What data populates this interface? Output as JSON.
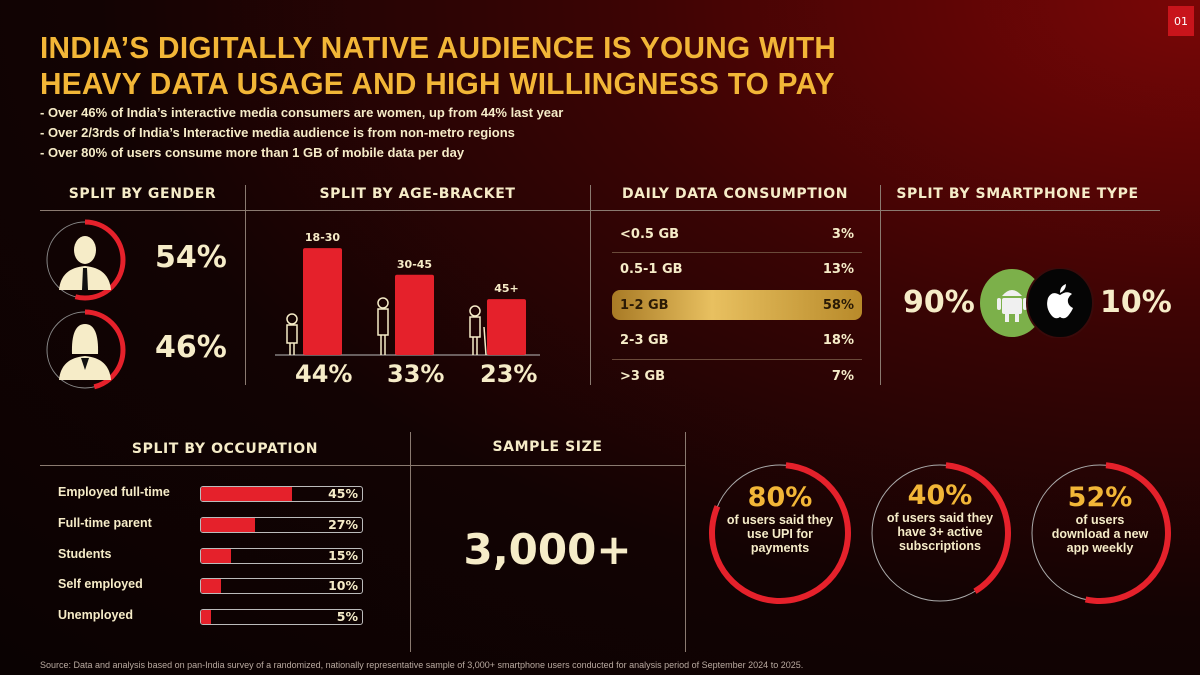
{
  "page_number": "01",
  "title": {
    "line1": "INDIA’S DIGITALLY NATIVE AUDIENCE IS YOUNG WITH",
    "line2": "HEAVY DATA USAGE AND HIGH WILLINGNESS TO PAY"
  },
  "bullets": [
    "- Over 46% of India’s interactive media consumers are women, up from 44% last year",
    "- Over 2/3rds of India’s Interactive media audience is from non-metro regions",
    "- Over 80% of users consume more than 1 GB of mobile data per day"
  ],
  "colors": {
    "accent_red": "#e5212b",
    "gold": "#f2b637",
    "cream": "#f6ecc8",
    "android_green": "#7cb04a"
  },
  "chart_data": [
    {
      "type": "pie",
      "title": "SPLIT BY GENDER",
      "categories": [
        "Male",
        "Female"
      ],
      "values": [
        54,
        46
      ],
      "labels": [
        "54%",
        "46%"
      ],
      "icons": [
        "male-user-icon",
        "female-user-icon"
      ]
    },
    {
      "type": "bar",
      "title": "SPLIT BY AGE-BRACKET",
      "categories": [
        "18-30",
        "30-45",
        "45+"
      ],
      "values": [
        44,
        33,
        23
      ],
      "labels": [
        "44%",
        "33%",
        "23%"
      ],
      "ylim": [
        0,
        50
      ]
    },
    {
      "type": "table",
      "title": "DAILY DATA CONSUMPTION",
      "categories": [
        "<0.5 GB",
        "0.5-1 GB",
        "1-2 GB",
        "2-3 GB",
        ">3 GB"
      ],
      "values": [
        3,
        13,
        58,
        18,
        7
      ],
      "labels": [
        "3%",
        "13%",
        "58%",
        "18%",
        "7%"
      ],
      "highlighted": "1-2 GB"
    },
    {
      "type": "pie",
      "title": "SPLIT BY SMARTPHONE TYPE",
      "categories": [
        "Android",
        "iOS"
      ],
      "values": [
        90,
        10
      ],
      "labels": [
        "90%",
        "10%"
      ],
      "icons": [
        "android-icon",
        "apple-icon"
      ]
    },
    {
      "type": "bar",
      "orientation": "horizontal",
      "title": "SPLIT BY OCCUPATION",
      "categories": [
        "Employed full-time",
        "Full-time parent",
        "Students",
        "Self employed",
        "Unemployed"
      ],
      "values": [
        45,
        27,
        15,
        10,
        5
      ],
      "labels": [
        "45%",
        "27%",
        "15%",
        "10%",
        "5%"
      ],
      "xlim": [
        0,
        100
      ]
    },
    {
      "type": "pie",
      "title": "",
      "rings": [
        {
          "value": 80,
          "label": "80%",
          "desc": "of users said they use UPI for payments"
        },
        {
          "value": 40,
          "label": "40%",
          "desc": "of users said they have 3+ active subscriptions"
        },
        {
          "value": 52,
          "label": "52%",
          "desc": "of users download a new app weekly"
        }
      ]
    }
  ],
  "sample": {
    "title": "SAMPLE SIZE",
    "value": "3,000+"
  },
  "source": "Source: Data and analysis based on pan-India survey of a randomized, nationally representative sample of 3,000+ smartphone users conducted for analysis period of September 2024 to 2025."
}
